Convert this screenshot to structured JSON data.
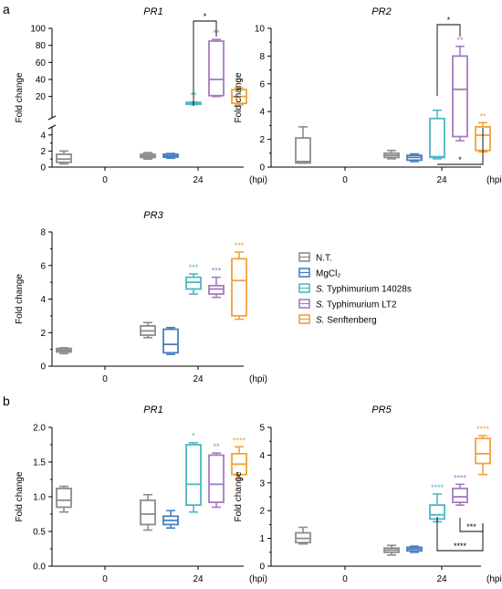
{
  "figure": {
    "panel_labels": [
      "a",
      "b"
    ],
    "legend": [
      {
        "label": "N.T.",
        "color": "#8c8c8c"
      },
      {
        "label": "MgCl₂",
        "color": "#4a7fc0"
      },
      {
        "label_italic": "S.",
        "label_rest": " Typhimurium 14028s",
        "color": "#4ab8c4"
      },
      {
        "label_italic": "S.",
        "label_rest": " Typhimurium LT2",
        "color": "#a57bc2"
      },
      {
        "label_italic": "S.",
        "label_rest": " Senftenberg",
        "color": "#f0a23b"
      }
    ]
  },
  "colors": {
    "N.T.": "#8c8c8c",
    "MgCl2": "#4a7fc0",
    "14028s": "#4ab8c4",
    "LT2": "#a57bc2",
    "Senftenberg": "#f0a23b"
  },
  "chart_data": [
    {
      "type": "box",
      "panel": "a",
      "title": "PR1",
      "ylabel": "Fold change",
      "xlabel": "(hpi)",
      "x_ticks": [
        "0",
        "24"
      ],
      "y_axis_broken": true,
      "y_ticks_lower": [
        "0",
        "2",
        "4"
      ],
      "y_ticks_upper": [
        "20",
        "40",
        "60",
        "80",
        "100"
      ],
      "groups": [
        {
          "time": "0",
          "treatment": "N.T.",
          "min": 0.4,
          "q1": 0.6,
          "median": 1.0,
          "q3": 1.6,
          "max": 2.0
        },
        {
          "time": "24",
          "treatment": "N.T.",
          "min": 1.0,
          "q1": 1.2,
          "median": 1.4,
          "q3": 1.6,
          "max": 1.8
        },
        {
          "time": "24",
          "treatment": "MgCl2",
          "min": 1.1,
          "q1": 1.25,
          "median": 1.4,
          "q3": 1.6,
          "max": 1.7
        },
        {
          "time": "24",
          "treatment": "14028s",
          "min": 10.5,
          "q1": 11,
          "median": 12,
          "q3": 13,
          "max": 13.5,
          "significance": "**"
        },
        {
          "time": "24",
          "treatment": "LT2",
          "min": 20,
          "q1": 21,
          "median": 40,
          "q3": 85,
          "max": 87,
          "significance": "**"
        },
        {
          "time": "24",
          "treatment": "Senftenberg",
          "min": 10,
          "q1": 12,
          "median": 20,
          "q3": 28,
          "max": 30,
          "significance": "**"
        }
      ],
      "comparisons": [
        {
          "between": [
            "14028s",
            "LT2"
          ],
          "label": "*"
        }
      ]
    },
    {
      "type": "box",
      "panel": "a",
      "title": "PR2",
      "ylabel": "Fold change",
      "xlabel": "(hpi)",
      "x_ticks": [
        "0",
        "24"
      ],
      "y_ticks": [
        "0",
        "2",
        "4",
        "6",
        "8",
        "10"
      ],
      "ylim": [
        0,
        10
      ],
      "groups": [
        {
          "time": "0",
          "treatment": "N.T.",
          "min": 0.3,
          "q1": 0.3,
          "median": 0.4,
          "q3": 2.1,
          "max": 2.9
        },
        {
          "time": "24",
          "treatment": "N.T.",
          "min": 0.6,
          "q1": 0.7,
          "median": 0.85,
          "q3": 1.0,
          "max": 1.2
        },
        {
          "time": "24",
          "treatment": "MgCl2",
          "min": 0.4,
          "q1": 0.5,
          "median": 0.7,
          "q3": 0.85,
          "max": 0.95
        },
        {
          "time": "24",
          "treatment": "14028s",
          "min": 0.6,
          "q1": 0.7,
          "median": 0.75,
          "q3": 3.5,
          "max": 4.1
        },
        {
          "time": "24",
          "treatment": "LT2",
          "min": 1.9,
          "q1": 2.2,
          "median": 5.6,
          "q3": 8.0,
          "max": 8.7,
          "significance": "**"
        },
        {
          "time": "24",
          "treatment": "Senftenberg",
          "min": 1.1,
          "q1": 1.2,
          "median": 2.3,
          "q3": 2.9,
          "max": 3.2,
          "significance": "**"
        }
      ],
      "comparisons": [
        {
          "between": [
            "14028s",
            "LT2"
          ],
          "label": "*"
        },
        {
          "between": [
            "14028s",
            "Senftenberg"
          ],
          "label": "*"
        }
      ]
    },
    {
      "type": "box",
      "panel": "a",
      "title": "PR3",
      "ylabel": "Fold change",
      "xlabel": "(hpi)",
      "x_ticks": [
        "0",
        "24"
      ],
      "y_ticks": [
        "0",
        "2",
        "4",
        "6",
        "8"
      ],
      "ylim": [
        0,
        8
      ],
      "groups": [
        {
          "time": "0",
          "treatment": "N.T.",
          "min": 0.75,
          "q1": 0.85,
          "median": 0.95,
          "q3": 1.05,
          "max": 1.1
        },
        {
          "time": "24",
          "treatment": "N.T.",
          "min": 1.7,
          "q1": 1.85,
          "median": 2.1,
          "q3": 2.4,
          "max": 2.6
        },
        {
          "time": "24",
          "treatment": "MgCl2",
          "min": 0.7,
          "q1": 0.8,
          "median": 1.3,
          "q3": 2.2,
          "max": 2.3
        },
        {
          "time": "24",
          "treatment": "14028s",
          "min": 4.3,
          "q1": 4.6,
          "median": 5.0,
          "q3": 5.3,
          "max": 5.5,
          "significance": "***"
        },
        {
          "time": "24",
          "treatment": "LT2",
          "min": 4.1,
          "q1": 4.3,
          "median": 4.6,
          "q3": 4.8,
          "max": 5.3,
          "significance": "***"
        },
        {
          "time": "24",
          "treatment": "Senftenberg",
          "min": 2.8,
          "q1": 3.0,
          "median": 5.1,
          "q3": 6.4,
          "max": 6.8,
          "significance": "***"
        }
      ]
    },
    {
      "type": "box",
      "panel": "b",
      "title": "PR1",
      "ylabel": "Fold change",
      "xlabel": "(hpi)",
      "x_ticks": [
        "0",
        "24"
      ],
      "y_ticks": [
        "0.0",
        "0.5",
        "1.0",
        "1.5",
        "2.0"
      ],
      "ylim": [
        0,
        2
      ],
      "groups": [
        {
          "time": "0",
          "treatment": "N.T.",
          "min": 0.78,
          "q1": 0.85,
          "median": 0.95,
          "q3": 1.12,
          "max": 1.15
        },
        {
          "time": "24",
          "treatment": "N.T.",
          "min": 0.52,
          "q1": 0.6,
          "median": 0.75,
          "q3": 0.95,
          "max": 1.03
        },
        {
          "time": "24",
          "treatment": "MgCl2",
          "min": 0.55,
          "q1": 0.6,
          "median": 0.66,
          "q3": 0.72,
          "max": 0.8
        },
        {
          "time": "24",
          "treatment": "14028s",
          "min": 0.78,
          "q1": 0.88,
          "median": 1.18,
          "q3": 1.75,
          "max": 1.78,
          "significance": "*"
        },
        {
          "time": "24",
          "treatment": "LT2",
          "min": 0.85,
          "q1": 0.92,
          "median": 1.18,
          "q3": 1.6,
          "max": 1.63,
          "significance": "**"
        },
        {
          "time": "24",
          "treatment": "Senftenberg",
          "min": 1.25,
          "q1": 1.32,
          "median": 1.47,
          "q3": 1.62,
          "max": 1.72,
          "significance": "****"
        }
      ]
    },
    {
      "type": "box",
      "panel": "b",
      "title": "PR5",
      "ylabel": "Fold change",
      "xlabel": "(hpi)",
      "x_ticks": [
        "0",
        "24"
      ],
      "y_ticks": [
        "0",
        "1",
        "2",
        "3",
        "4",
        "5"
      ],
      "ylim": [
        0,
        5
      ],
      "groups": [
        {
          "time": "0",
          "treatment": "N.T.",
          "min": 0.8,
          "q1": 0.85,
          "median": 1.0,
          "q3": 1.2,
          "max": 1.4
        },
        {
          "time": "24",
          "treatment": "N.T.",
          "min": 0.4,
          "q1": 0.5,
          "median": 0.58,
          "q3": 0.65,
          "max": 0.75
        },
        {
          "time": "24",
          "treatment": "MgCl2",
          "min": 0.5,
          "q1": 0.55,
          "median": 0.62,
          "q3": 0.68,
          "max": 0.72
        },
        {
          "time": "24",
          "treatment": "14028s",
          "min": 1.6,
          "q1": 1.7,
          "median": 1.85,
          "q3": 2.2,
          "max": 2.6,
          "significance": "****"
        },
        {
          "time": "24",
          "treatment": "LT2",
          "min": 2.2,
          "q1": 2.3,
          "median": 2.5,
          "q3": 2.8,
          "max": 2.95,
          "significance": "****"
        },
        {
          "time": "24",
          "treatment": "Senftenberg",
          "min": 3.3,
          "q1": 3.7,
          "median": 4.05,
          "q3": 4.6,
          "max": 4.7,
          "significance": "****"
        }
      ],
      "comparisons": [
        {
          "between": [
            "LT2",
            "Senftenberg"
          ],
          "label": "***"
        },
        {
          "between": [
            "14028s",
            "Senftenberg"
          ],
          "label": "****"
        }
      ]
    }
  ]
}
